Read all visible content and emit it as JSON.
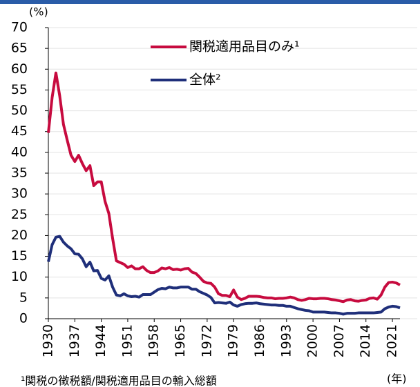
{
  "chart_data": {
    "type": "line",
    "ylabel": "(%)",
    "xlabel": "(年)",
    "footnote": "¹関税の徴税額/関税適用品目の輸入総額",
    "x": [
      1930,
      1931,
      1932,
      1933,
      1934,
      1935,
      1936,
      1937,
      1938,
      1939,
      1940,
      1941,
      1942,
      1943,
      1944,
      1945,
      1946,
      1947,
      1948,
      1949,
      1950,
      1951,
      1952,
      1953,
      1954,
      1955,
      1956,
      1957,
      1958,
      1959,
      1960,
      1961,
      1962,
      1963,
      1964,
      1965,
      1966,
      1967,
      1968,
      1969,
      1970,
      1971,
      1972,
      1973,
      1974,
      1975,
      1976,
      1977,
      1978,
      1979,
      1980,
      1981,
      1982,
      1983,
      1984,
      1985,
      1986,
      1987,
      1988,
      1989,
      1990,
      1991,
      1992,
      1993,
      1994,
      1995,
      1996,
      1997,
      1998,
      1999,
      2000,
      2001,
      2002,
      2003,
      2004,
      2005,
      2006,
      2007,
      2008,
      2009,
      2010,
      2011,
      2012,
      2013,
      2014,
      2015,
      2016,
      2017,
      2018,
      2019,
      2020,
      2021,
      2022,
      2023
    ],
    "series": [
      {
        "name": "関税適用品目のみ¹",
        "color": "#c70b3f",
        "values": [
          44.7,
          53.2,
          59.1,
          53.6,
          46.7,
          42.9,
          39.3,
          37.8,
          39.3,
          37.3,
          35.6,
          36.8,
          32.0,
          32.9,
          32.9,
          28.2,
          25.3,
          19.3,
          13.9,
          13.5,
          13.1,
          12.3,
          12.7,
          12.0,
          12.0,
          12.5,
          11.6,
          11.1,
          11.1,
          11.5,
          12.2,
          12.0,
          12.3,
          11.8,
          11.9,
          11.7,
          12.0,
          12.1,
          11.2,
          10.9,
          10.0,
          9.0,
          8.6,
          8.5,
          7.6,
          6.0,
          5.6,
          5.6,
          5.3,
          6.9,
          5.2,
          4.6,
          4.9,
          5.4,
          5.4,
          5.4,
          5.3,
          5.1,
          5.0,
          5.0,
          4.8,
          4.9,
          4.9,
          5.0,
          5.2,
          5.0,
          4.6,
          4.4,
          4.6,
          4.9,
          4.8,
          4.8,
          4.9,
          4.9,
          4.8,
          4.6,
          4.5,
          4.3,
          4.1,
          4.5,
          4.6,
          4.3,
          4.2,
          4.4,
          4.5,
          4.9,
          5.0,
          4.7,
          5.7,
          7.6,
          8.7,
          8.8,
          8.6,
          8.1
        ]
      },
      {
        "name": "全体²",
        "color": "#1f2f7a",
        "values": [
          13.7,
          17.8,
          19.6,
          19.8,
          18.4,
          17.5,
          16.8,
          15.6,
          15.5,
          14.4,
          12.5,
          13.6,
          11.5,
          11.6,
          9.7,
          9.3,
          10.3,
          7.6,
          5.7,
          5.5,
          6.0,
          5.5,
          5.3,
          5.4,
          5.2,
          5.8,
          5.8,
          5.8,
          6.4,
          7.0,
          7.3,
          7.2,
          7.6,
          7.4,
          7.4,
          7.6,
          7.6,
          7.6,
          7.1,
          7.1,
          6.5,
          6.1,
          5.7,
          5.1,
          3.8,
          3.9,
          3.8,
          3.7,
          4.0,
          3.3,
          3.0,
          3.4,
          3.6,
          3.7,
          3.7,
          3.8,
          3.6,
          3.5,
          3.4,
          3.3,
          3.3,
          3.2,
          3.2,
          3.0,
          3.0,
          2.7,
          2.4,
          2.2,
          2.0,
          1.9,
          1.6,
          1.6,
          1.6,
          1.6,
          1.5,
          1.4,
          1.4,
          1.3,
          1.1,
          1.3,
          1.3,
          1.3,
          1.4,
          1.4,
          1.4,
          1.4,
          1.4,
          1.5,
          1.6,
          2.4,
          2.8,
          3.0,
          2.9,
          2.6
        ]
      }
    ],
    "xlim": [
      1930,
      2023
    ],
    "xticks": [
      1930,
      1937,
      1944,
      1951,
      1958,
      1965,
      1972,
      1979,
      1986,
      1993,
      2000,
      2007,
      2014,
      2021
    ],
    "ylim": [
      0,
      70
    ],
    "yticks": [
      0,
      5,
      10,
      15,
      20,
      25,
      30,
      35,
      40,
      45,
      50,
      55,
      60,
      65,
      70
    ],
    "grid": true
  }
}
